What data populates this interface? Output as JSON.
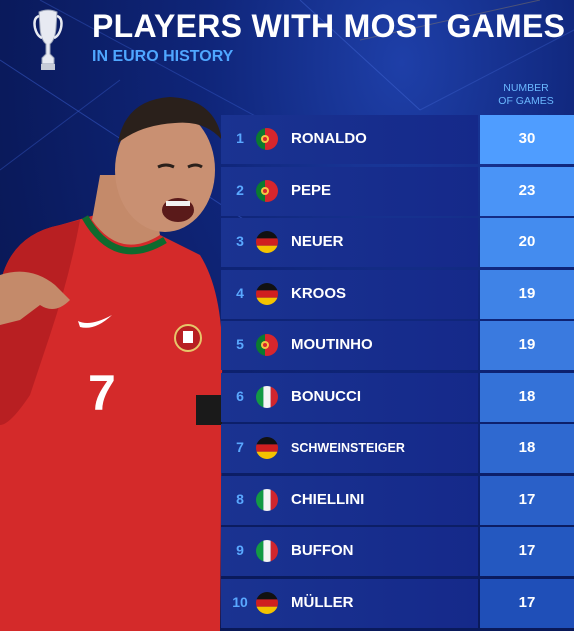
{
  "header": {
    "title": "PLAYERS WITH MOST GAMES",
    "subtitle": "IN EURO HISTORY",
    "column_heading": "NUMBER\nOF GAMES"
  },
  "player_image": {
    "shirt_number": "7"
  },
  "rows": [
    {
      "rank": "1",
      "name": "RONALDO",
      "flag": "portugal",
      "games": "30"
    },
    {
      "rank": "2",
      "name": "PEPE",
      "flag": "portugal",
      "games": "23"
    },
    {
      "rank": "3",
      "name": "NEUER",
      "flag": "germany",
      "games": "20"
    },
    {
      "rank": "4",
      "name": "KROOS",
      "flag": "germany",
      "games": "19"
    },
    {
      "rank": "5",
      "name": "MOUTINHO",
      "flag": "portugal",
      "games": "19"
    },
    {
      "rank": "6",
      "name": "BONUCCI",
      "flag": "italy",
      "games": "18"
    },
    {
      "rank": "7",
      "name": "SCHWEINSTEIGER",
      "flag": "germany",
      "games": "18"
    },
    {
      "rank": "8",
      "name": "CHIELLINI",
      "flag": "italy",
      "games": "17"
    },
    {
      "rank": "9",
      "name": "BUFFON",
      "flag": "italy",
      "games": "17"
    },
    {
      "rank": "10",
      "name": "MÜLLER",
      "flag": "germany",
      "games": "17"
    }
  ],
  "colors": {
    "accent_blue": "#4fa7ff",
    "games_gradient_top": "#4f9dff",
    "games_gradient_bottom": "#1f4fb8",
    "portugal_red": "#d7262d",
    "portugal_green": "#0a7a2f"
  }
}
